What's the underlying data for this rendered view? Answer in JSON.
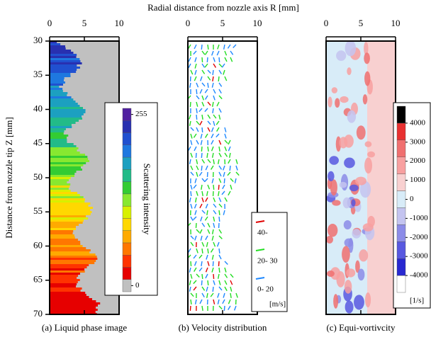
{
  "xlabel": "Radial distance from nozzle axis R [mm]",
  "ylabel": "Distance from nozzle tip Z [mm]",
  "chart_data": [
    {
      "type": "heatmap",
      "title": "(a) Liquid phase image",
      "xlim": [
        0,
        10
      ],
      "xticks": [
        0,
        5,
        10
      ],
      "ylim": [
        30,
        70
      ],
      "yticks": [
        30,
        35,
        40,
        45,
        50,
        55,
        60,
        65,
        70
      ],
      "colorbar": {
        "label": "Scattering intensity",
        "clim": [
          0,
          255
        ],
        "cticks": [
          0,
          255
        ],
        "colors": [
          "#c0c0c0",
          "#e60000",
          "#ff3300",
          "#ff7700",
          "#ffaa00",
          "#ffd800",
          "#d8f000",
          "#88e830",
          "#33cc33",
          "#22bb88",
          "#1ca0c0",
          "#1e78e0",
          "#2050d0",
          "#2830b0",
          "#5020a0"
        ]
      }
    },
    {
      "type": "quiver",
      "title": "(b) Velocity distribution",
      "xlim": [
        0,
        10
      ],
      "xticks": [
        0,
        5,
        10
      ],
      "series": [
        {
          "name": "40-",
          "color": "#e00000"
        },
        {
          "name": "20- 30",
          "color": "#22dd22"
        },
        {
          "name": "0- 20",
          "color": "#1e88ff"
        }
      ],
      "unit": "[m/s]"
    },
    {
      "type": "heatmap",
      "title": "(c) Equi-vortivcity",
      "xlim": [
        0,
        10
      ],
      "xticks": [
        0,
        5,
        10
      ],
      "colorbar": {
        "label": "[1/s]",
        "clim": [
          -4000,
          4000
        ],
        "cticks": [
          -4000,
          -3000,
          -2000,
          -1000,
          0,
          1000,
          2000,
          3000,
          4000
        ],
        "colors": [
          "#ffffff",
          "#2828d0",
          "#5858e0",
          "#8c8ce8",
          "#c4c4f0",
          "#d8ecf8",
          "#f8d0d0",
          "#f8a0a0",
          "#f07070",
          "#e83030",
          "#000000"
        ]
      }
    }
  ]
}
